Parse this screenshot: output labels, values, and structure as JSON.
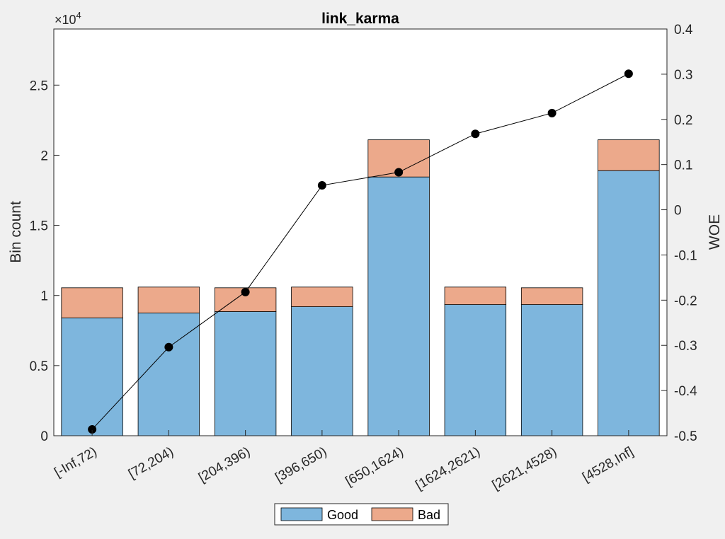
{
  "chart_data": {
    "type": "bar",
    "title": "link_karma",
    "categories": [
      "[-Inf,72)",
      "[72,204)",
      "[204,396)",
      "[396,650)",
      "[650,1624)",
      "[1624,2621)",
      "[2621,4528)",
      "[4528,Inf]"
    ],
    "series": [
      {
        "name": "Good",
        "values": [
          8400,
          8750,
          8850,
          9200,
          18450,
          9350,
          9350,
          18900
        ],
        "color": "#7eb6dd"
      },
      {
        "name": "Bad",
        "values": [
          2150,
          1850,
          1700,
          1400,
          2650,
          1250,
          1200,
          2200
        ],
        "color": "#eca98b"
      }
    ],
    "stacked": true,
    "ylabel": "Bin count",
    "ylim": [
      0,
      29000
    ],
    "yticks": [
      0,
      5000,
      10000,
      15000,
      20000,
      25000
    ],
    "ytick_labels": [
      "0",
      "0.5",
      "1",
      "1.5",
      "2",
      "2.5"
    ],
    "y_exponent_label": "×10",
    "y_exponent_power": "4",
    "y2label": "WOE",
    "y2lim": [
      -0.5,
      0.4
    ],
    "y2ticks": [
      -0.5,
      -0.4,
      -0.3,
      -0.2,
      -0.1,
      0,
      0.1,
      0.2,
      0.3,
      0.4
    ],
    "y2tick_labels": [
      "-0.5",
      "-0.4",
      "-0.3",
      "-0.2",
      "-0.1",
      "0",
      "0.1",
      "0.2",
      "0.3",
      "0.4"
    ],
    "woe": [
      -0.486,
      -0.304,
      -0.182,
      0.054,
      0.083,
      0.168,
      0.214,
      0.301
    ],
    "legend": {
      "location": "bottom-center",
      "entries": [
        "Good",
        "Bad"
      ]
    },
    "grid": false,
    "axis_color": "#262626",
    "background": "#f0f0f0",
    "plot_background": "#ffffff"
  }
}
